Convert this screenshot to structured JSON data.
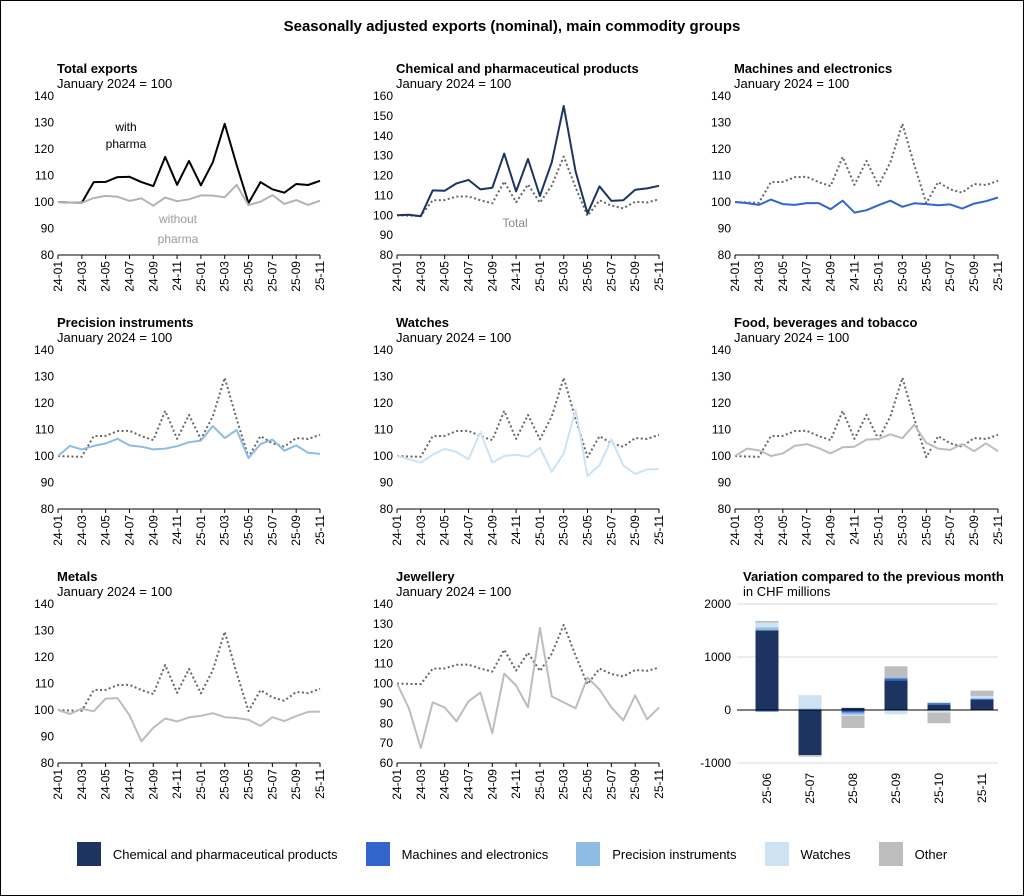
{
  "title": "Seasonally adjusted exports (nominal), main commodity groups",
  "colors": {
    "total": "#000000",
    "without_pharma": "#b3b3b3",
    "chem": "#1d3461",
    "machines": "#3366cc",
    "precision": "#8fbce3",
    "watches": "#cde2f3",
    "food": "#bdbdbd",
    "metals": "#bdbdbd",
    "jewellery": "#bdbdbd",
    "other": "#bdbdbd",
    "reference": "#666666",
    "grid": "#d9d9d9"
  },
  "legend": [
    {
      "label": "Chemical and pharmaceutical products",
      "color": "#1d3461"
    },
    {
      "label": "Machines and electronics",
      "color": "#3366cc"
    },
    {
      "label": "Precision instruments",
      "color": "#8fbce3"
    },
    {
      "label": "Watches",
      "color": "#cde2f3"
    },
    {
      "label": "Other",
      "color": "#bdbdbd"
    }
  ],
  "chart_data": [
    {
      "type": "line",
      "title": "Total exports",
      "subtitle": "January 2024 = 100",
      "x": [
        "24-01",
        "24-02",
        "24-03",
        "24-04",
        "24-05",
        "24-06",
        "24-07",
        "24-08",
        "24-09",
        "24-10",
        "24-11",
        "24-12",
        "25-01",
        "25-02",
        "25-03",
        "25-04",
        "25-05",
        "25-06",
        "25-07",
        "25-08",
        "25-09",
        "25-10",
        "25-11"
      ],
      "x_ticks": [
        "24-01",
        "24-03",
        "24-05",
        "24-07",
        "24-09",
        "24-11",
        "25-01",
        "25-03",
        "25-05",
        "25-07",
        "25-09",
        "25-11"
      ],
      "ylim": [
        80,
        140
      ],
      "yticks": [
        80,
        90,
        100,
        110,
        120,
        130,
        140
      ],
      "series": [
        {
          "name": "with pharma",
          "color": "#000000",
          "values": [
            100,
            99.8,
            99.7,
            107.5,
            107.6,
            109.4,
            109.5,
            107.5,
            106,
            117,
            106.5,
            115.5,
            106.3,
            115,
            129.5,
            114,
            99.6,
            107.5,
            104.8,
            103.5,
            106.8,
            106.4,
            108
          ]
        },
        {
          "name": "without pharma",
          "color": "#b3b3b3",
          "values": [
            100,
            99.8,
            99.7,
            101.5,
            102.3,
            102,
            100.4,
            101.4,
            98.6,
            101.7,
            100.3,
            101,
            102.5,
            102.4,
            101.8,
            106.5,
            98.8,
            100.1,
            102.6,
            99.3,
            100.7,
            98.9,
            100.5
          ]
        }
      ],
      "annotations": [
        {
          "text": "with",
          "series": 0
        },
        {
          "text": "pharma",
          "series": 0
        },
        {
          "text": "without",
          "series": 1
        },
        {
          "text": "pharma",
          "series": 1
        }
      ]
    },
    {
      "type": "line",
      "title": "Chemical and pharmaceutical products",
      "subtitle": "January 2024 = 100",
      "x": [
        "24-01",
        "24-02",
        "24-03",
        "24-04",
        "24-05",
        "24-06",
        "24-07",
        "24-08",
        "24-09",
        "24-10",
        "24-11",
        "24-12",
        "25-01",
        "25-02",
        "25-03",
        "25-04",
        "25-05",
        "25-06",
        "25-07",
        "25-08",
        "25-09",
        "25-10",
        "25-11"
      ],
      "x_ticks": [
        "24-01",
        "24-03",
        "24-05",
        "24-07",
        "24-09",
        "24-11",
        "25-01",
        "25-03",
        "25-05",
        "25-07",
        "25-09",
        "25-11"
      ],
      "ylim": [
        80,
        160
      ],
      "yticks": [
        80,
        90,
        100,
        110,
        120,
        130,
        140,
        150,
        160
      ],
      "series": [
        {
          "name": "Chemical and pharmaceutical products",
          "color": "#1d3461",
          "values": [
            100,
            100.3,
            99.5,
            112.5,
            112.3,
            116,
            117.8,
            113,
            113.8,
            131,
            112,
            128.3,
            109.7,
            126.7,
            155,
            122,
            101,
            114.5,
            107.2,
            107.5,
            112.8,
            113.5,
            114.8
          ]
        },
        {
          "name": "Total",
          "color": "#666666",
          "dashed": true,
          "values": [
            100,
            99.8,
            99.7,
            107.5,
            107.6,
            109.4,
            109.5,
            107.5,
            106,
            117,
            106.5,
            115.5,
            106.3,
            115,
            129.5,
            114,
            99.6,
            107.5,
            104.8,
            103.5,
            106.8,
            106.4,
            108
          ]
        }
      ],
      "annotations": [
        {
          "text": "Total",
          "series": 1
        }
      ]
    },
    {
      "type": "line",
      "title": "Machines and electronics",
      "subtitle": "January 2024 = 100",
      "x": [
        "24-01",
        "24-02",
        "24-03",
        "24-04",
        "24-05",
        "24-06",
        "24-07",
        "24-08",
        "24-09",
        "24-10",
        "24-11",
        "24-12",
        "25-01",
        "25-02",
        "25-03",
        "25-04",
        "25-05",
        "25-06",
        "25-07",
        "25-08",
        "25-09",
        "25-10",
        "25-11"
      ],
      "x_ticks": [
        "24-01",
        "24-03",
        "24-05",
        "24-07",
        "24-09",
        "24-11",
        "25-01",
        "25-03",
        "25-05",
        "25-07",
        "25-09",
        "25-11"
      ],
      "ylim": [
        80,
        140
      ],
      "yticks": [
        80,
        90,
        100,
        110,
        120,
        130,
        140
      ],
      "series": [
        {
          "name": "Machines and electronics",
          "color": "#3366cc",
          "values": [
            100,
            99.6,
            98.9,
            100.9,
            99.2,
            98.9,
            99.6,
            99.6,
            97.3,
            100.5,
            96,
            96.9,
            98.8,
            100.5,
            98.2,
            99.5,
            99.2,
            98.8,
            99.1,
            97.5,
            99.4,
            100.3,
            101.7
          ]
        },
        {
          "name": "Total",
          "color": "#666666",
          "dashed": true,
          "values": [
            100,
            99.8,
            99.7,
            107.5,
            107.6,
            109.4,
            109.5,
            107.5,
            106,
            117,
            106.5,
            115.5,
            106.3,
            115,
            129.5,
            114,
            99.6,
            107.5,
            104.8,
            103.5,
            106.8,
            106.4,
            108
          ]
        }
      ]
    },
    {
      "type": "line",
      "title": "Precision instruments",
      "subtitle": "January 2024 = 100",
      "x": [
        "24-01",
        "24-02",
        "24-03",
        "24-04",
        "24-05",
        "24-06",
        "24-07",
        "24-08",
        "24-09",
        "24-10",
        "24-11",
        "24-12",
        "25-01",
        "25-02",
        "25-03",
        "25-04",
        "25-05",
        "25-06",
        "25-07",
        "25-08",
        "25-09",
        "25-10",
        "25-11"
      ],
      "x_ticks": [
        "24-01",
        "24-03",
        "24-05",
        "24-07",
        "24-09",
        "24-11",
        "25-01",
        "25-03",
        "25-05",
        "25-07",
        "25-09",
        "25-11"
      ],
      "ylim": [
        80,
        140
      ],
      "yticks": [
        80,
        90,
        100,
        110,
        120,
        130,
        140
      ],
      "series": [
        {
          "name": "Precision instruments",
          "color": "#8fbce3",
          "values": [
            100,
            103.8,
            102.5,
            103.8,
            104.7,
            106.5,
            104,
            103.5,
            102.5,
            102.8,
            103.7,
            105.2,
            105.8,
            111.3,
            106.8,
            109.8,
            99.2,
            104.5,
            106.2,
            102,
            104,
            101.2,
            100.8
          ]
        },
        {
          "name": "Total",
          "color": "#666666",
          "dashed": true,
          "values": [
            100,
            99.8,
            99.7,
            107.5,
            107.6,
            109.4,
            109.5,
            107.5,
            106,
            117,
            106.5,
            115.5,
            106.3,
            115,
            129.5,
            114,
            99.6,
            107.5,
            104.8,
            103.5,
            106.8,
            106.4,
            108
          ]
        }
      ]
    },
    {
      "type": "line",
      "title": "Watches",
      "subtitle": "January 2024 = 100",
      "x": [
        "24-01",
        "24-02",
        "24-03",
        "24-04",
        "24-05",
        "24-06",
        "24-07",
        "24-08",
        "24-09",
        "24-10",
        "24-11",
        "24-12",
        "25-01",
        "25-02",
        "25-03",
        "25-04",
        "25-05",
        "25-06",
        "25-07",
        "25-08",
        "25-09",
        "25-10",
        "25-11"
      ],
      "x_ticks": [
        "24-01",
        "24-03",
        "24-05",
        "24-07",
        "24-09",
        "24-11",
        "25-01",
        "25-03",
        "25-05",
        "25-07",
        "25-09",
        "25-11"
      ],
      "ylim": [
        80,
        140
      ],
      "yticks": [
        80,
        90,
        100,
        110,
        120,
        130,
        140
      ],
      "series": [
        {
          "name": "Watches",
          "color": "#cde2f3",
          "values": [
            100,
            98.8,
            97.5,
            100.5,
            102.7,
            101.5,
            98.8,
            109,
            97.5,
            100,
            100.5,
            99.7,
            103.2,
            94,
            101,
            117.5,
            92.5,
            96.5,
            106.3,
            96.5,
            93.2,
            95,
            95
          ]
        },
        {
          "name": "Total",
          "color": "#666666",
          "dashed": true,
          "values": [
            100,
            99.8,
            99.7,
            107.5,
            107.6,
            109.4,
            109.5,
            107.5,
            106,
            117,
            106.5,
            115.5,
            106.3,
            115,
            129.5,
            114,
            99.6,
            107.5,
            104.8,
            103.5,
            106.8,
            106.4,
            108
          ]
        }
      ]
    },
    {
      "type": "line",
      "title": "Food, beverages and tobacco",
      "subtitle": "January 2024 = 100",
      "x": [
        "24-01",
        "24-02",
        "24-03",
        "24-04",
        "24-05",
        "24-06",
        "24-07",
        "24-08",
        "24-09",
        "24-10",
        "24-11",
        "24-12",
        "25-01",
        "25-02",
        "25-03",
        "25-04",
        "25-05",
        "25-06",
        "25-07",
        "25-08",
        "25-09",
        "25-10",
        "25-11"
      ],
      "x_ticks": [
        "24-01",
        "24-03",
        "24-05",
        "24-07",
        "24-09",
        "24-11",
        "25-01",
        "25-03",
        "25-05",
        "25-07",
        "25-09",
        "25-11"
      ],
      "ylim": [
        80,
        140
      ],
      "yticks": [
        80,
        90,
        100,
        110,
        120,
        130,
        140
      ],
      "series": [
        {
          "name": "Food, beverages and tobacco",
          "color": "#bdbdbd",
          "values": [
            100,
            102.8,
            102.2,
            100,
            101,
            103.8,
            104.5,
            103,
            101,
            103.3,
            103.5,
            106.2,
            106.4,
            108.2,
            106.7,
            111.8,
            105,
            102.8,
            102.3,
            104.5,
            101.8,
            104.8,
            101.8
          ]
        },
        {
          "name": "Total",
          "color": "#666666",
          "dashed": true,
          "values": [
            100,
            99.8,
            99.7,
            107.5,
            107.6,
            109.4,
            109.5,
            107.5,
            106,
            117,
            106.5,
            115.5,
            106.3,
            115,
            129.5,
            114,
            99.6,
            107.5,
            104.8,
            103.5,
            106.8,
            106.4,
            108
          ]
        }
      ]
    },
    {
      "type": "line",
      "title": "Metals",
      "subtitle": "January 2024 = 100",
      "x": [
        "24-01",
        "24-02",
        "24-03",
        "24-04",
        "24-05",
        "24-06",
        "24-07",
        "24-08",
        "24-09",
        "24-10",
        "24-11",
        "24-12",
        "25-01",
        "25-02",
        "25-03",
        "25-04",
        "25-05",
        "25-06",
        "25-07",
        "25-08",
        "25-09",
        "25-10",
        "25-11"
      ],
      "x_ticks": [
        "24-01",
        "24-03",
        "24-05",
        "24-07",
        "24-09",
        "24-11",
        "25-01",
        "25-03",
        "25-05",
        "25-07",
        "25-09",
        "25-11"
      ],
      "ylim": [
        80,
        140
      ],
      "yticks": [
        80,
        90,
        100,
        110,
        120,
        130,
        140
      ],
      "series": [
        {
          "name": "Metals",
          "color": "#bdbdbd",
          "values": [
            100,
            98.5,
            100.5,
            99.5,
            104.3,
            104.5,
            98,
            88.2,
            93.3,
            96.8,
            95.7,
            97.2,
            97.8,
            98.8,
            97.3,
            97,
            96.3,
            94,
            97.3,
            95.8,
            97.7,
            99.3,
            99.4
          ]
        },
        {
          "name": "Total",
          "color": "#666666",
          "dashed": true,
          "values": [
            100,
            99.8,
            99.7,
            107.5,
            107.6,
            109.4,
            109.5,
            107.5,
            106,
            117,
            106.5,
            115.5,
            106.3,
            115,
            129.5,
            114,
            99.6,
            107.5,
            104.8,
            103.5,
            106.8,
            106.4,
            108
          ]
        }
      ]
    },
    {
      "type": "line",
      "title": "Jewellery",
      "subtitle": "January 2024 = 100",
      "x": [
        "24-01",
        "24-02",
        "24-03",
        "24-04",
        "24-05",
        "24-06",
        "24-07",
        "24-08",
        "24-09",
        "24-10",
        "24-11",
        "24-12",
        "25-01",
        "25-02",
        "25-03",
        "25-04",
        "25-05",
        "25-06",
        "25-07",
        "25-08",
        "25-09",
        "25-10",
        "25-11"
      ],
      "x_ticks": [
        "24-01",
        "24-03",
        "24-05",
        "24-07",
        "24-09",
        "24-11",
        "25-01",
        "25-03",
        "25-05",
        "25-07",
        "25-09",
        "25-11"
      ],
      "ylim": [
        60,
        140
      ],
      "yticks": [
        60,
        70,
        80,
        90,
        100,
        110,
        120,
        130,
        140
      ],
      "series": [
        {
          "name": "Jewellery",
          "color": "#bdbdbd",
          "values": [
            100,
            87.5,
            67.5,
            90.5,
            88,
            81,
            91,
            95.5,
            75,
            105,
            99,
            88,
            128,
            93.5,
            90.5,
            87.5,
            103,
            97,
            88,
            81.5,
            94,
            82,
            88
          ]
        },
        {
          "name": "Total",
          "color": "#666666",
          "dashed": true,
          "values": [
            100,
            99.8,
            99.7,
            107.5,
            107.6,
            109.4,
            109.5,
            107.5,
            106,
            117,
            106.5,
            115.5,
            106.3,
            115,
            129.5,
            114,
            99.6,
            107.5,
            104.8,
            103.5,
            106.8,
            106.4,
            108
          ]
        }
      ]
    },
    {
      "type": "bar",
      "title": "Variation compared to the previous month",
      "subtitle": "in CHF millions",
      "categories": [
        "25-06",
        "25-07",
        "25-08",
        "25-09",
        "25-10",
        "25-11"
      ],
      "ylim": [
        -1000,
        2000
      ],
      "yticks": [
        -1000,
        0,
        1000,
        2000
      ],
      "stacked": true,
      "series": [
        {
          "name": "Chemical and pharmaceutical products",
          "color": "#1d3461",
          "values": [
            1500,
            -850,
            40,
            560,
            100,
            190
          ]
        },
        {
          "name": "Machines and electronics",
          "color": "#3366cc",
          "values": [
            -30,
            5,
            -50,
            35,
            30,
            20
          ]
        },
        {
          "name": "Precision instruments",
          "color": "#8fbce3",
          "values": [
            60,
            25,
            -40,
            30,
            10,
            15
          ]
        },
        {
          "name": "Watches",
          "color": "#cde2f3",
          "values": [
            90,
            250,
            -20,
            -80,
            -50,
            40
          ]
        },
        {
          "name": "Other",
          "color": "#bdbdbd",
          "values": [
            30,
            -30,
            -230,
            200,
            -200,
            100
          ]
        }
      ]
    }
  ]
}
